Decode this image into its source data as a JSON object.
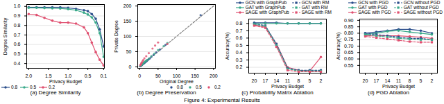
{
  "title": "Figure 4: Experimental Results",
  "chart_data": [
    {
      "type": "line",
      "title": "(a) Degree Similarity",
      "xlabel": "Privacy Budget",
      "ylabel": "Degree Similarity",
      "x": [
        2.0,
        1.8,
        1.6,
        1.4,
        1.2,
        1.0,
        0.8,
        0.6,
        0.5,
        0.4,
        0.3,
        0.2,
        0.1
      ],
      "xlim": [
        2.05,
        0.08
      ],
      "xticks": [
        {
          "value": 2,
          "label": "2.0"
        },
        1.5,
        {
          "value": 1,
          "label": "1.0"
        },
        0.5,
        0.1
      ],
      "ylim": [
        0.35,
        1.02
      ],
      "yticks": [
        0.4,
        0.5,
        0.6,
        0.7,
        0.8,
        0.9,
        {
          "value": 1,
          "label": "1.0"
        }
      ],
      "grid": "y",
      "legend": "lower left",
      "series": [
        {
          "name": "0.8",
          "color": "#2c4f8c",
          "marker": "circle",
          "values": [
            0.99,
            0.99,
            0.99,
            0.99,
            0.99,
            0.985,
            0.975,
            0.96,
            0.95,
            0.92,
            0.87,
            0.76,
            0.58
          ]
        },
        {
          "name": "0.5",
          "color": "#3aaa8a",
          "marker": "circle",
          "values": [
            0.985,
            0.985,
            0.983,
            0.98,
            0.978,
            0.972,
            0.96,
            0.935,
            0.915,
            0.885,
            0.83,
            0.72,
            0.47
          ]
        },
        {
          "name": "0.2",
          "color": "#e05070",
          "marker": "circle",
          "values": [
            0.92,
            0.91,
            0.88,
            0.85,
            0.83,
            0.83,
            0.82,
            0.78,
            0.72,
            0.62,
            0.52,
            0.44,
            0.38
          ]
        }
      ]
    },
    {
      "type": "scatter",
      "title": "(b) Degree Preservation",
      "xlabel": "Original Degree",
      "ylabel": "Private Degree",
      "xlim": [
        -5,
        205
      ],
      "xticks": [
        0,
        50,
        100,
        150,
        200
      ],
      "ylim": [
        -5,
        205
      ],
      "yticks": [
        0,
        50,
        100,
        150,
        200
      ],
      "grid": "y",
      "legend": "lower right",
      "series": [
        {
          "name": "0.8",
          "color": "#2c4f8c",
          "marker": "circle",
          "x": [
            2,
            3,
            4,
            5,
            6,
            7,
            8,
            9,
            10,
            11,
            12,
            13,
            14,
            15,
            16,
            17,
            18,
            19,
            20,
            22,
            25,
            28,
            32,
            38,
            45,
            55,
            70,
            165
          ],
          "values": [
            2,
            3,
            4,
            5,
            6,
            7,
            8,
            9,
            10,
            11,
            12,
            13,
            14,
            15,
            16,
            17,
            18,
            19,
            20,
            22,
            25,
            28,
            33,
            39,
            47,
            57,
            72,
            170
          ]
        },
        {
          "name": "0.5",
          "color": "#3aaa8a",
          "marker": "circle",
          "x": [
            2,
            3,
            4,
            5,
            6,
            7,
            8,
            9,
            10,
            12,
            14,
            16,
            18,
            20,
            25,
            32,
            40,
            50,
            65,
            75
          ],
          "values": [
            3,
            4,
            5,
            6,
            7,
            8,
            9,
            10,
            12,
            14,
            16,
            18,
            20,
            22,
            27,
            35,
            43,
            55,
            68,
            78
          ]
        },
        {
          "name": "0.2",
          "color": "#e05070",
          "marker": "circle",
          "x": [
            2,
            3,
            4,
            5,
            6,
            8,
            10,
            13,
            18,
            25,
            35,
            42,
            50,
            75
          ],
          "values": [
            5,
            7,
            9,
            12,
            14,
            18,
            22,
            28,
            35,
            45,
            60,
            70,
            80,
            75
          ]
        },
        {
          "type": "line",
          "line_style": "dashed",
          "color": "gray",
          "x": [
            0,
            200
          ],
          "values": [
            0,
            200
          ]
        }
      ]
    },
    {
      "type": "line",
      "title": "(c) Probability Matrix Ablation",
      "xlabel": "Privacy Budget",
      "ylabel": "Accuracy(%)",
      "categories": [
        "20",
        "17",
        "14",
        "11",
        "8",
        "5",
        "2"
      ],
      "ylim": [
        0.12,
        0.86
      ],
      "yticks": [
        0.2,
        0.3,
        0.4,
        0.5,
        0.6,
        0.7,
        0.8
      ],
      "grid": "y",
      "legend": "upper right",
      "series": [
        {
          "name": "GCN with GraphPub",
          "color": "#2c4f8c",
          "line_style": "solid",
          "marker": "circle",
          "values": [
            0.81,
            0.81,
            0.81,
            0.8,
            0.8,
            0.8,
            0.8
          ]
        },
        {
          "name": "GAT with GraphPub",
          "color": "#3aaa8a",
          "line_style": "solid",
          "marker": "circle",
          "values": [
            0.8,
            0.8,
            0.8,
            0.8,
            0.8,
            0.8,
            0.8
          ]
        },
        {
          "name": "SAGE with GraphPub",
          "color": "#e05070",
          "line_style": "solid",
          "marker": "circle",
          "values": [
            0.78,
            0.75,
            0.52,
            0.2,
            0.16,
            0.15,
            0.34
          ]
        },
        {
          "name": "GCN with RM",
          "color": "#2c4f8c",
          "line_style": "dashed",
          "marker": "square",
          "values": [
            0.8,
            0.77,
            0.52,
            0.19,
            0.16,
            0.16,
            0.16
          ]
        },
        {
          "name": "GAT with RM",
          "color": "#3aaa8a",
          "line_style": "dashed",
          "marker": "square",
          "values": [
            0.79,
            0.76,
            0.5,
            0.18,
            0.15,
            0.15,
            0.15
          ]
        },
        {
          "name": "SAGE with RM",
          "color": "#e05070",
          "line_style": "dashed",
          "marker": "square",
          "values": [
            0.77,
            0.74,
            0.48,
            0.16,
            0.14,
            0.14,
            0.14
          ]
        }
      ]
    },
    {
      "type": "line",
      "title": "(d) PGD Ablation",
      "xlabel": "Privacy Budget",
      "ylabel": "Accuracy(%)",
      "categories": [
        "20",
        "17",
        "14",
        "11",
        "8",
        "5",
        "2"
      ],
      "ylim": [
        0.49,
        0.91
      ],
      "yticks": [
        0.55,
        {
          "value": 0.6,
          "label": "0.60"
        },
        0.65,
        {
          "value": 0.7,
          "label": "0.70"
        },
        0.75,
        {
          "value": 0.8,
          "label": "0.80"
        },
        0.85,
        {
          "value": 0.9,
          "label": "0.90"
        }
      ],
      "grid": "y",
      "legend": "upper right",
      "series": [
        {
          "name": "GCN with PGD",
          "color": "#2c4f8c",
          "line_style": "solid",
          "marker": "circle",
          "values": [
            0.8,
            0.81,
            0.82,
            0.83,
            0.83,
            0.82,
            0.8
          ]
        },
        {
          "name": "GAT with PGD",
          "color": "#3aaa8a",
          "line_style": "solid",
          "marker": "circle",
          "values": [
            0.79,
            0.8,
            0.815,
            0.82,
            0.81,
            0.8,
            0.79
          ]
        },
        {
          "name": "SAGE with PGD",
          "color": "#e05070",
          "line_style": "solid",
          "marker": "circle",
          "values": [
            0.78,
            0.78,
            0.78,
            0.78,
            0.775,
            0.77,
            0.76
          ]
        },
        {
          "name": "GCN without PGD",
          "color": "#2c4f8c",
          "line_style": "dashed",
          "marker": "square",
          "values": [
            0.8,
            0.79,
            0.78,
            0.77,
            0.76,
            0.76,
            0.75
          ]
        },
        {
          "name": "GAT without PGD",
          "color": "#3aaa8a",
          "line_style": "dashed",
          "marker": "square",
          "values": [
            0.79,
            0.78,
            0.77,
            0.76,
            0.755,
            0.75,
            0.75
          ]
        },
        {
          "name": "SAGE without PGD",
          "color": "#e05070",
          "line_style": "dashed",
          "marker": "square",
          "values": [
            0.775,
            0.765,
            0.755,
            0.745,
            0.735,
            0.73,
            0.73
          ]
        }
      ]
    }
  ]
}
